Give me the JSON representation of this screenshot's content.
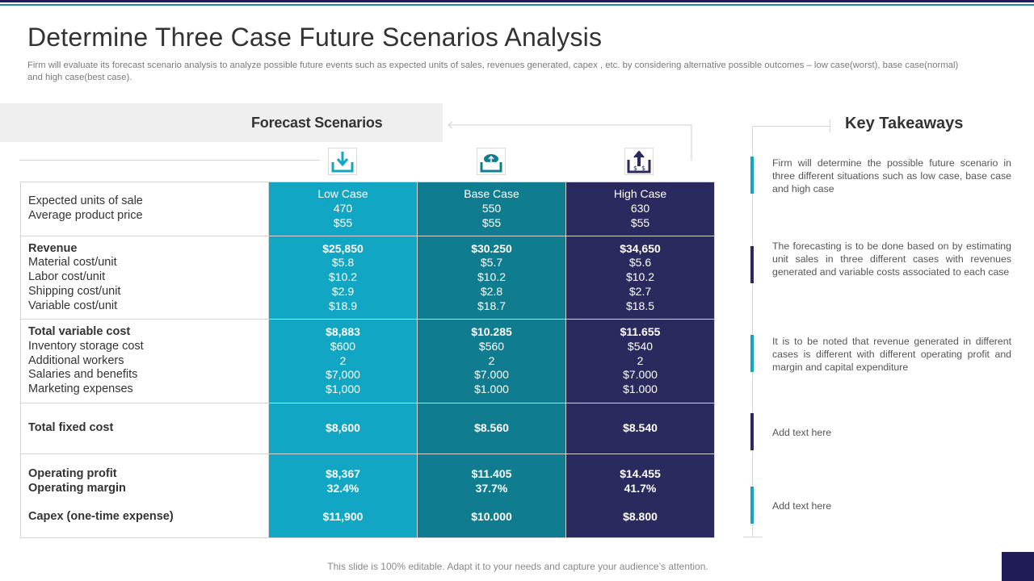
{
  "title": "Determine Three Case Future Scenarios Analysis",
  "subtitle": "Firm will evaluate its forecast scenario analysis to analyze possible future events such as expected units of sales, revenues generated, capex , etc. by considering alternative possible outcomes – low case(worst), base case(normal) and high case(best case).",
  "forecast_scenarios_label": "Forecast Scenarios",
  "icons": [
    "download-icon",
    "cloud-upload-icon",
    "money-upload-icon"
  ],
  "colors": {
    "low_case": "#11a6c4",
    "base_case": "#0f7c8f",
    "high_case": "#2a2a5e",
    "accent_dark": "#1f1c57"
  },
  "table": {
    "columns": [
      "Low Case",
      "Base Case",
      "High Case"
    ],
    "sections": [
      {
        "labels": [
          "Expected units of sale",
          "Average product price"
        ],
        "low": [
          "470",
          "$55"
        ],
        "base": [
          "550",
          "$55"
        ],
        "high": [
          "630",
          "$55"
        ]
      },
      {
        "labels": [
          "Revenue",
          "Material cost/unit",
          "Labor cost/unit",
          "Shipping cost/unit",
          "Variable cost/unit"
        ],
        "low": [
          "$25,850",
          "$5.8",
          "$10.2",
          "$2.9",
          "$18.9"
        ],
        "base": [
          "$30.250",
          "$5.7",
          "$10.2",
          "$2.8",
          "$18.7"
        ],
        "high": [
          "$34,650",
          "$5.6",
          "$10.2",
          "$2.7",
          "$18.5"
        ]
      },
      {
        "labels": [
          "Total variable cost",
          "Inventory storage cost",
          "Additional workers",
          "Salaries and benefits",
          "Marketing expenses"
        ],
        "low": [
          "$8,883",
          "$600",
          "2",
          "$7,000",
          "$1,000"
        ],
        "base": [
          "$10.285",
          "$560",
          "2",
          "$7.000",
          "$1.000"
        ],
        "high": [
          "$11.655",
          "$540",
          "2",
          "$7.000",
          "$1.000"
        ]
      },
      {
        "labels": [
          "Total fixed cost"
        ],
        "low": [
          "$8,600"
        ],
        "base": [
          "$8.560"
        ],
        "high": [
          "$8.540"
        ]
      },
      {
        "labels": [
          "Operating profit",
          "Operating margin",
          "Capex (one-time expense)"
        ],
        "low": [
          "$8,367",
          "32.4%",
          "$11,900"
        ],
        "base": [
          "$11.405",
          "37.7%",
          "$10.000"
        ],
        "high": [
          "$14.455",
          "41.7%",
          "$8.800"
        ]
      }
    ]
  },
  "key_takeaways": {
    "title": "Key Takeaways",
    "items": [
      "Firm will determine the possible future scenario in three different situations such as low case, base case and high case",
      "The forecasting is to be done based on by estimating unit sales in three different cases with revenues generated  and variable costs associated to each case",
      "It is to be noted that revenue  generated  in different cases is different with different  operating profit and margin and capital expenditure",
      "Add text here",
      "Add text here"
    ]
  },
  "footer": "This slide is 100% editable. Adapt it to your needs and capture your audience’s attention."
}
